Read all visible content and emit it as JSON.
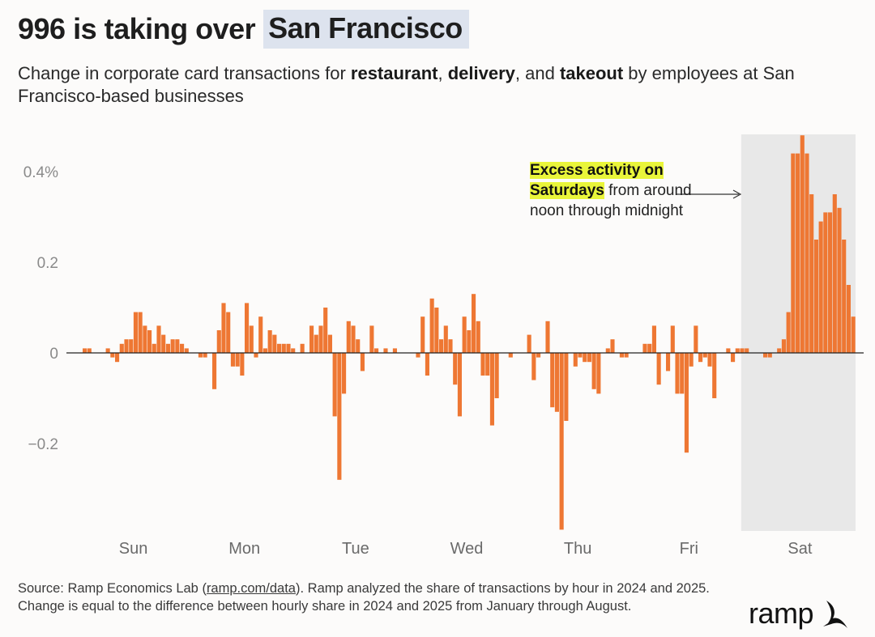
{
  "title_plain": "996 is taking over",
  "title_highlight": "San Francisco",
  "subtitle_parts": {
    "p1": "Change in corporate card transactions for ",
    "b1": "restaurant",
    "p2": ", ",
    "b2": "delivery",
    "p3": ", and ",
    "b3": "takeout",
    "p4": " by employees at San Francisco-based businesses"
  },
  "annotation": {
    "highlight_1": "Excess activity on",
    "highlight_2": "Saturdays",
    "rest": " from around noon through midnight"
  },
  "source": {
    "prefix": "Source: Ramp Economics Lab (",
    "link": "ramp.com/data",
    "suffix": "). Ramp analyzed the share of transactions by hour in 2024 and 2025. Change is equal to the difference between hourly share in 2024 and 2025 from January through August."
  },
  "brand": "ramp",
  "colors": {
    "bar": "#ee7733",
    "saturday_shade": "#e8e8e8",
    "title_highlight": "#dde3ee",
    "annotation_highlight": "#e9f53a"
  },
  "chart_data": {
    "type": "bar",
    "ylim": [
      -0.39,
      0.48
    ],
    "y_ticks": [
      {
        "value": 0.4,
        "label": "0.4%"
      },
      {
        "value": 0.2,
        "label": "0.2"
      },
      {
        "value": 0,
        "label": "0"
      },
      {
        "value": -0.2,
        "label": "−0.2"
      }
    ],
    "day_labels": [
      "Sun",
      "Mon",
      "Tue",
      "Wed",
      "Thu",
      "Fri",
      "Sat"
    ],
    "highlighted_day": "Sat",
    "hours_per_day": 24,
    "values": [
      0.0,
      0.01,
      0.01,
      0.0,
      0.0,
      0.0,
      0.01,
      -0.01,
      -0.02,
      0.02,
      0.03,
      0.03,
      0.09,
      0.09,
      0.06,
      0.05,
      0.02,
      0.06,
      0.04,
      0.02,
      0.03,
      0.03,
      0.02,
      0.01,
      0.0,
      0.0,
      -0.01,
      -0.01,
      0.0,
      -0.08,
      0.05,
      0.11,
      0.09,
      -0.03,
      -0.03,
      -0.05,
      0.11,
      0.06,
      -0.01,
      0.08,
      0.01,
      0.05,
      0.04,
      0.02,
      0.02,
      0.02,
      0.01,
      0.0,
      0.02,
      0.0,
      0.06,
      0.04,
      0.06,
      0.1,
      0.04,
      -0.14,
      -0.28,
      -0.09,
      0.07,
      0.06,
      0.03,
      -0.04,
      0.0,
      0.06,
      0.01,
      0.0,
      0.01,
      0.0,
      0.01,
      0.0,
      0.0,
      0.0,
      0.0,
      -0.01,
      0.08,
      -0.05,
      0.12,
      0.1,
      0.03,
      0.06,
      0.03,
      -0.07,
      -0.14,
      0.08,
      0.05,
      0.13,
      0.07,
      -0.05,
      -0.05,
      -0.16,
      -0.1,
      0.0,
      0.0,
      -0.01,
      0.0,
      0.0,
      0.0,
      0.04,
      -0.06,
      -0.01,
      0.0,
      0.07,
      -0.12,
      -0.13,
      -0.39,
      -0.15,
      0.0,
      -0.03,
      -0.01,
      -0.02,
      -0.02,
      -0.08,
      -0.09,
      0.0,
      0.01,
      0.03,
      0.0,
      -0.01,
      -0.01,
      0.0,
      0.0,
      0.0,
      0.02,
      0.02,
      0.06,
      -0.07,
      0.0,
      -0.04,
      0.06,
      -0.09,
      -0.09,
      -0.22,
      -0.03,
      0.06,
      -0.02,
      -0.01,
      -0.03,
      -0.1,
      0.0,
      0.0,
      0.01,
      -0.02,
      0.01,
      0.01,
      0.01,
      0.0,
      0.0,
      0.0,
      -0.01,
      -0.01,
      0.0,
      0.01,
      0.03,
      0.09,
      0.44,
      0.44,
      0.48,
      0.44,
      0.35,
      0.25,
      0.29,
      0.31,
      0.31,
      0.35,
      0.32,
      0.25,
      0.15,
      0.08
    ]
  }
}
